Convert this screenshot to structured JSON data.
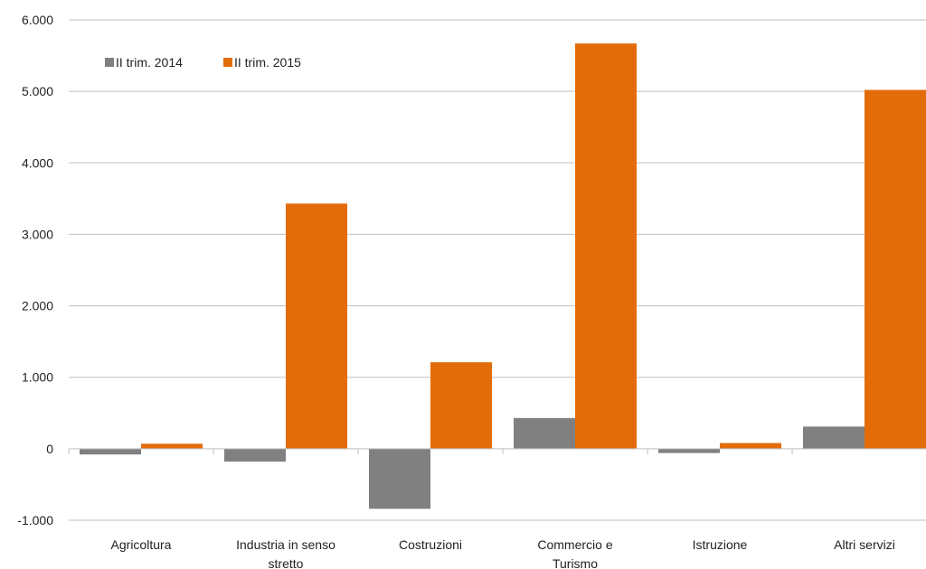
{
  "chart_data": {
    "type": "bar",
    "categories": [
      [
        "Agricoltura"
      ],
      [
        "Industria in senso",
        "stretto"
      ],
      [
        "Costruzioni"
      ],
      [
        "Commercio e",
        "Turismo"
      ],
      [
        "Istruzione"
      ],
      [
        "Altri servizi"
      ]
    ],
    "series": [
      {
        "name": "II trim. 2014",
        "color": "#808080",
        "values": [
          -80,
          -180,
          -840,
          430,
          -60,
          310
        ]
      },
      {
        "name": "II trim. 2015",
        "color": "#e36c0a",
        "values": [
          70,
          3430,
          1210,
          5670,
          80,
          5020
        ]
      }
    ],
    "ylim": [
      -1000,
      6000
    ],
    "yticks": [
      -1000,
      0,
      1000,
      2000,
      3000,
      4000,
      5000,
      6000
    ],
    "ytick_labels": [
      "-1.000",
      "0",
      "1.000",
      "2.000",
      "3.000",
      "4.000",
      "5.000",
      "6.000"
    ],
    "grid": true,
    "legend_position": "top-left",
    "title": "",
    "xlabel": "",
    "ylabel": ""
  }
}
